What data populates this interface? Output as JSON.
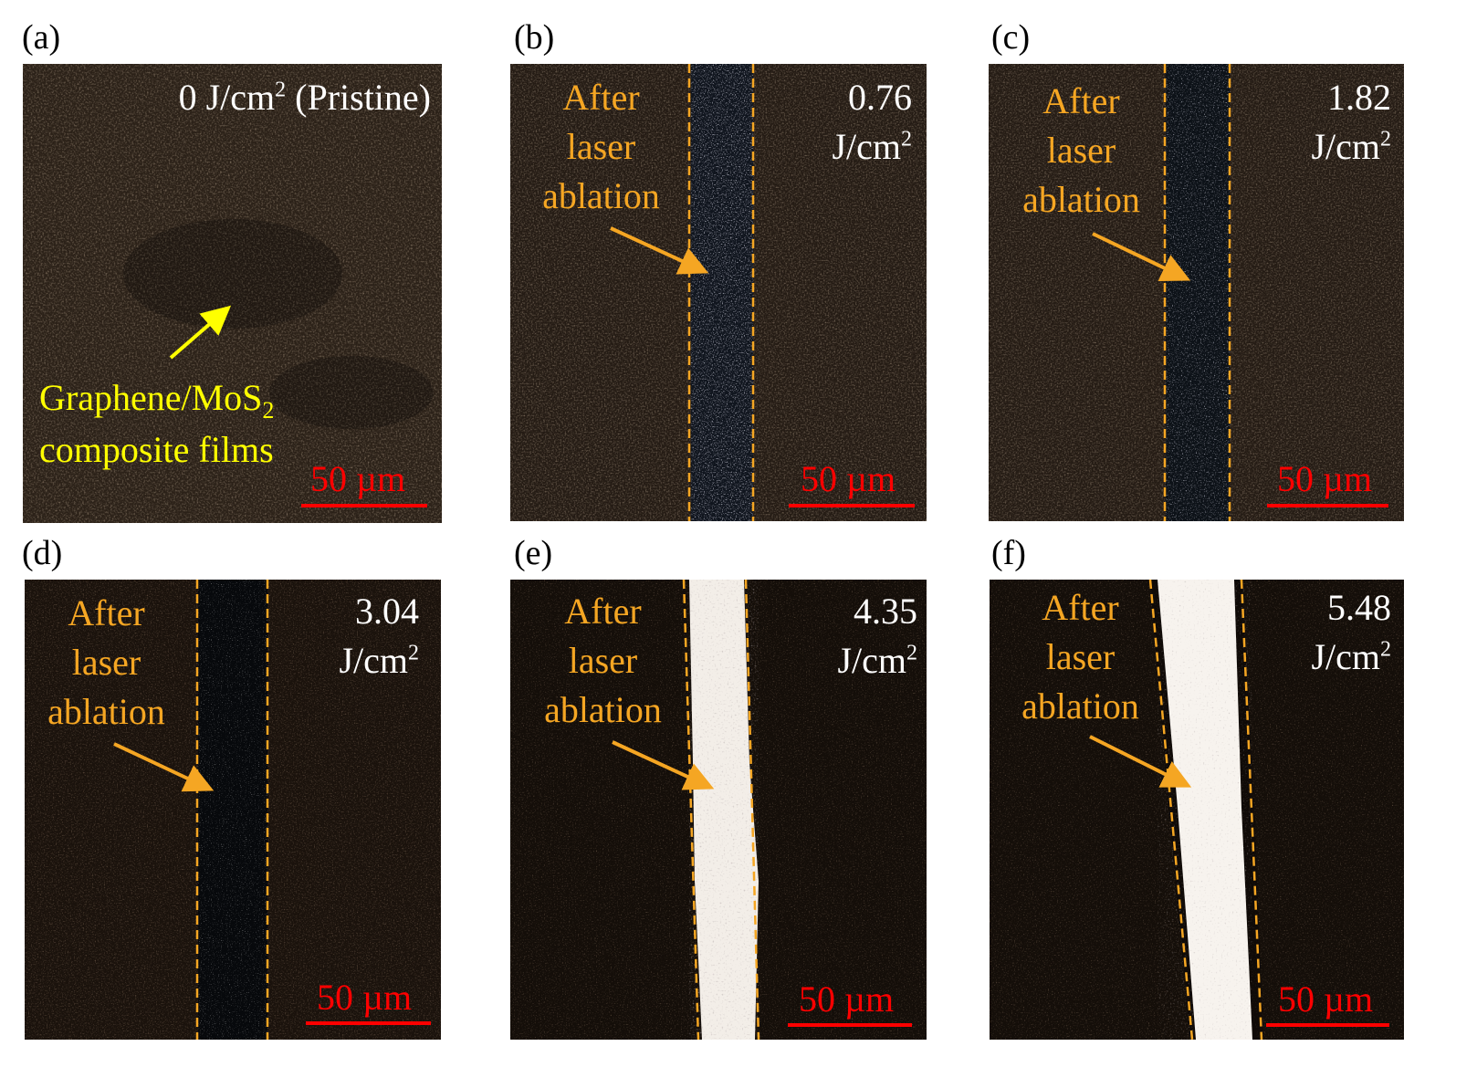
{
  "panels": [
    {
      "label": "(a)",
      "fluence": "0 J/cm",
      "fluence_sup": "2",
      "fluence_suffix": " (Pristine)",
      "scale": "50 µm",
      "film_line1": "Graphene/MoS",
      "film_sub": "2",
      "film_line2": "composite films"
    },
    {
      "label": "(b)",
      "fluence": "0.76",
      "unit": "J/cm",
      "unit_sup": "2",
      "ablation_label": [
        "After",
        "laser",
        "ablation"
      ],
      "scale": "50 µm"
    },
    {
      "label": "(c)",
      "fluence": "1.82",
      "unit": "J/cm",
      "unit_sup": "2",
      "ablation_label": [
        "After",
        "laser",
        "ablation"
      ],
      "scale": "50 µm"
    },
    {
      "label": "(d)",
      "fluence": "3.04",
      "unit": "J/cm",
      "unit_sup": "2",
      "ablation_label": [
        "After",
        "laser",
        "ablation"
      ],
      "scale": "50 µm"
    },
    {
      "label": "(e)",
      "fluence": "4.35",
      "unit": "J/cm",
      "unit_sup": "2",
      "ablation_label": [
        "After",
        "laser",
        "ablation"
      ],
      "scale": "50 µm"
    },
    {
      "label": "(f)",
      "fluence": "5.48",
      "unit": "J/cm",
      "unit_sup": "2",
      "ablation_label": [
        "After",
        "laser",
        "ablation"
      ],
      "scale": "50 µm"
    }
  ],
  "colors": {
    "ablation_text": "#f5a623",
    "film_text": "#ffff00",
    "scale": "#ff0000",
    "fluence_text": "#ffffff"
  }
}
